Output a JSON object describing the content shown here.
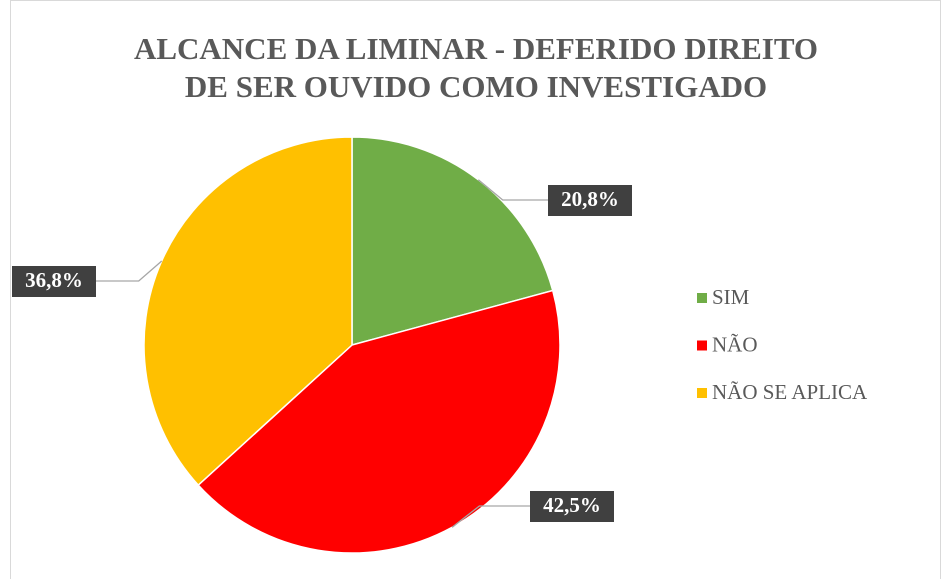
{
  "chart_data": {
    "type": "pie",
    "title": [
      "ALCANCE DA LIMINAR - DEFERIDO DIREITO",
      "DE SER OUVIDO COMO INVESTIGADO"
    ],
    "categories": [
      "SIM",
      "NÃO",
      "NÃO SE APLICA"
    ],
    "values": [
      20.8,
      42.5,
      36.8
    ],
    "value_labels": [
      "20,8%",
      "42,5%",
      "36,8%"
    ],
    "colors": [
      "#70ad47",
      "#ff0000",
      "#ffc000"
    ],
    "legend": "right"
  }
}
